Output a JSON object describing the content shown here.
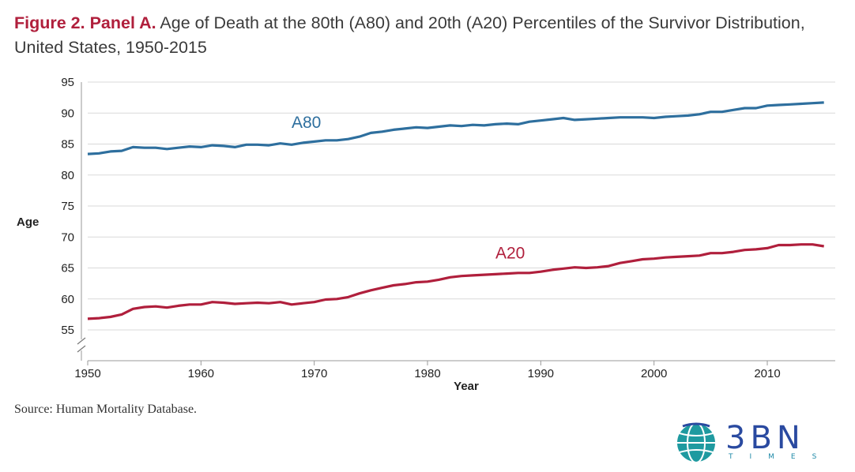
{
  "header": {
    "figure_label": "Figure 2. Panel A.",
    "title_text": "Age of Death at the 80th (A80) and 20th (A20) Percentiles of the Survivor Distribution, United States, 1950-2015"
  },
  "source": "Source: Human Mortality Database.",
  "logo": {
    "word": "3BN",
    "sub": "TIMES"
  },
  "chart_data": {
    "type": "line",
    "xlabel": "Year",
    "ylabel": "Age",
    "xlim": [
      1950,
      2016
    ],
    "ylim": [
      52,
      95
    ],
    "axis_break": true,
    "grid": true,
    "x_ticks": [
      1950,
      1960,
      1970,
      1980,
      1990,
      2000,
      2010
    ],
    "y_ticks": [
      55,
      60,
      65,
      70,
      75,
      80,
      85,
      90,
      95
    ],
    "x": [
      1950,
      1951,
      1952,
      1953,
      1954,
      1955,
      1956,
      1957,
      1958,
      1959,
      1960,
      1961,
      1962,
      1963,
      1964,
      1965,
      1966,
      1967,
      1968,
      1969,
      1970,
      1971,
      1972,
      1973,
      1974,
      1975,
      1976,
      1977,
      1978,
      1979,
      1980,
      1981,
      1982,
      1983,
      1984,
      1985,
      1986,
      1987,
      1988,
      1989,
      1990,
      1991,
      1992,
      1993,
      1994,
      1995,
      1996,
      1997,
      1998,
      1999,
      2000,
      2001,
      2002,
      2003,
      2004,
      2005,
      2006,
      2007,
      2008,
      2009,
      2010,
      2011,
      2012,
      2013,
      2014,
      2015
    ],
    "series": [
      {
        "name": "A80",
        "color": "#2e6f9e",
        "values": [
          83.4,
          83.5,
          83.8,
          83.9,
          84.5,
          84.4,
          84.4,
          84.2,
          84.4,
          84.6,
          84.5,
          84.8,
          84.7,
          84.5,
          84.9,
          84.9,
          84.8,
          85.1,
          84.9,
          85.2,
          85.4,
          85.6,
          85.6,
          85.8,
          86.2,
          86.8,
          87.0,
          87.3,
          87.5,
          87.7,
          87.6,
          87.8,
          88.0,
          87.9,
          88.1,
          88.0,
          88.2,
          88.3,
          88.2,
          88.6,
          88.8,
          89.0,
          89.2,
          88.9,
          89.0,
          89.1,
          89.2,
          89.3,
          89.3,
          89.3,
          89.2,
          89.4,
          89.5,
          89.6,
          89.8,
          90.2,
          90.2,
          90.5,
          90.8,
          90.8,
          91.2,
          91.3,
          91.4,
          91.5,
          91.6,
          91.7
        ]
      },
      {
        "name": "A20",
        "color": "#b01f3c",
        "values": [
          56.8,
          56.9,
          57.1,
          57.5,
          58.4,
          58.7,
          58.8,
          58.6,
          58.9,
          59.1,
          59.1,
          59.5,
          59.4,
          59.2,
          59.3,
          59.4,
          59.3,
          59.5,
          59.1,
          59.3,
          59.5,
          59.9,
          60.0,
          60.3,
          60.9,
          61.4,
          61.8,
          62.2,
          62.4,
          62.7,
          62.8,
          63.1,
          63.5,
          63.7,
          63.8,
          63.9,
          64.0,
          64.1,
          64.2,
          64.2,
          64.4,
          64.7,
          64.9,
          65.1,
          65.0,
          65.1,
          65.3,
          65.8,
          66.1,
          66.4,
          66.5,
          66.7,
          66.8,
          66.9,
          67.0,
          67.4,
          67.4,
          67.6,
          67.9,
          68.0,
          68.2,
          68.7,
          68.7,
          68.8,
          68.8,
          68.5
        ]
      }
    ],
    "annotations": [
      {
        "text": "A80",
        "series": "A80",
        "color": "#2e6f9e"
      },
      {
        "text": "A20",
        "series": "A20",
        "color": "#b01f3c"
      }
    ]
  }
}
